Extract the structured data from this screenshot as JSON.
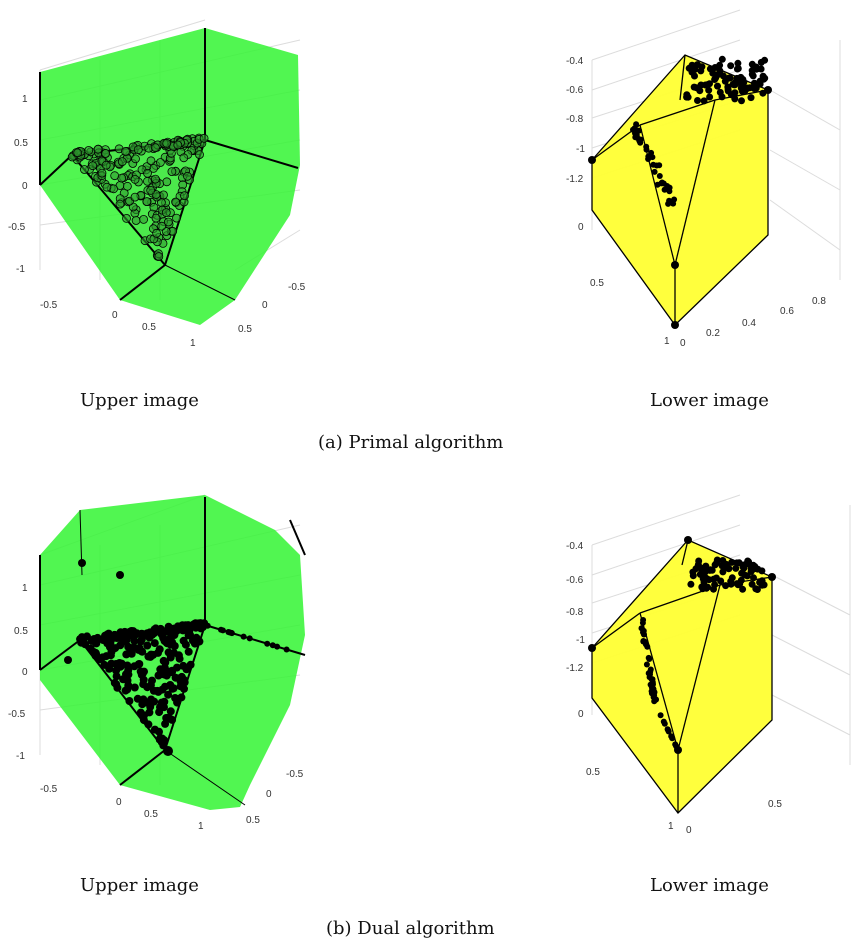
{
  "figure": {
    "rows": [
      {
        "caption": "(a) Primal algorithm",
        "upper": {
          "label": "Upper image",
          "y_ticks": [
            "1",
            "0.5",
            "0",
            "-0.5",
            "-1"
          ],
          "x_ticks": [
            "-0.5",
            "0",
            "0.5",
            "1"
          ],
          "z_ticks": [
            "-0.5",
            "0",
            "0.5"
          ]
        },
        "lower": {
          "label": "Lower image",
          "y_ticks": [
            "-0.4",
            "-0.6",
            "-0.8",
            "-1",
            "-1.2",
            "0"
          ],
          "x_ticks": [
            "0.5",
            "1"
          ],
          "z_ticks": [
            "0",
            "0.2",
            "0.4",
            "0.6",
            "0.8"
          ]
        }
      },
      {
        "caption": "(b) Dual algorithm",
        "upper": {
          "label": "Upper image",
          "y_ticks": [
            "1",
            "0.5",
            "0",
            "-0.5",
            "-1"
          ],
          "x_ticks": [
            "-0.5",
            "0",
            "0.5",
            "1"
          ],
          "z_ticks": [
            "-0.5",
            "0",
            "0.5"
          ]
        },
        "lower": {
          "label": "Lower image",
          "y_ticks": [
            "-0.4",
            "-0.6",
            "-0.8",
            "-1",
            "-1.2",
            "0"
          ],
          "x_ticks": [
            "0.5",
            "1"
          ],
          "z_ticks": [
            "0",
            "0.5"
          ]
        }
      }
    ],
    "colors": {
      "green_face": "#33f533",
      "yellow_face": "#ffff33",
      "edge": "#000000"
    }
  }
}
